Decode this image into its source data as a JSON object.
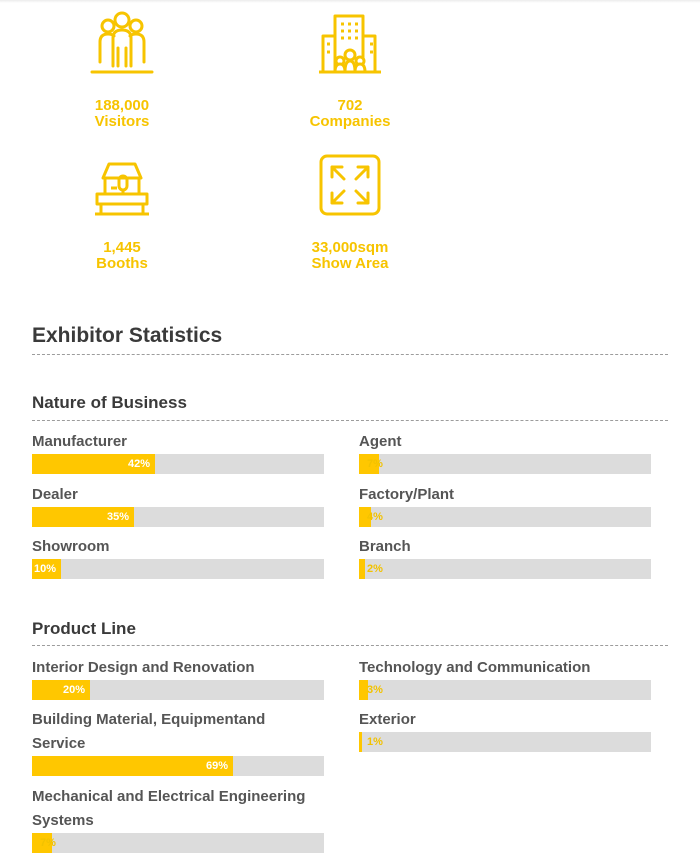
{
  "stats": [
    {
      "icon": "visitors-icon",
      "value": "188,000",
      "label": "Visitors"
    },
    {
      "icon": "companies-icon",
      "value": "702",
      "label": "Companies"
    },
    {
      "icon": "booths-icon",
      "value": "1,445",
      "label": "Booths"
    },
    {
      "icon": "show-area-icon",
      "value": "33,000sqm",
      "label": "Show Area"
    }
  ],
  "section_title": "Exhibitor Statistics",
  "nature": {
    "title": "Nature of Business",
    "items": [
      {
        "label": "Manufacturer",
        "pct": 42,
        "text": "42%"
      },
      {
        "label": "Agent",
        "pct": 7,
        "text": "7%"
      },
      {
        "label": "Dealer",
        "pct": 35,
        "text": "35%"
      },
      {
        "label": "Factory/Plant",
        "pct": 4,
        "text": "4%"
      },
      {
        "label": "Showroom",
        "pct": 10,
        "text": "10%"
      },
      {
        "label": "Branch",
        "pct": 2,
        "text": "2%"
      }
    ]
  },
  "product": {
    "title": "Product Line",
    "items": [
      {
        "label": "Interior Design and Renovation",
        "pct": 20,
        "text": "20%"
      },
      {
        "label": "Technology and Communication",
        "pct": 3,
        "text": "3%"
      },
      {
        "label": "Building Material, Equipmentand Service",
        "pct": 69,
        "text": "69%"
      },
      {
        "label": "Exterior",
        "pct": 1,
        "text": "1%"
      },
      {
        "label": "Mechanical and Electrical Engineering Systems",
        "pct": 7,
        "text": "7%"
      }
    ]
  },
  "colors": {
    "accent": "#ffc700",
    "track": "#dcdcdc"
  }
}
